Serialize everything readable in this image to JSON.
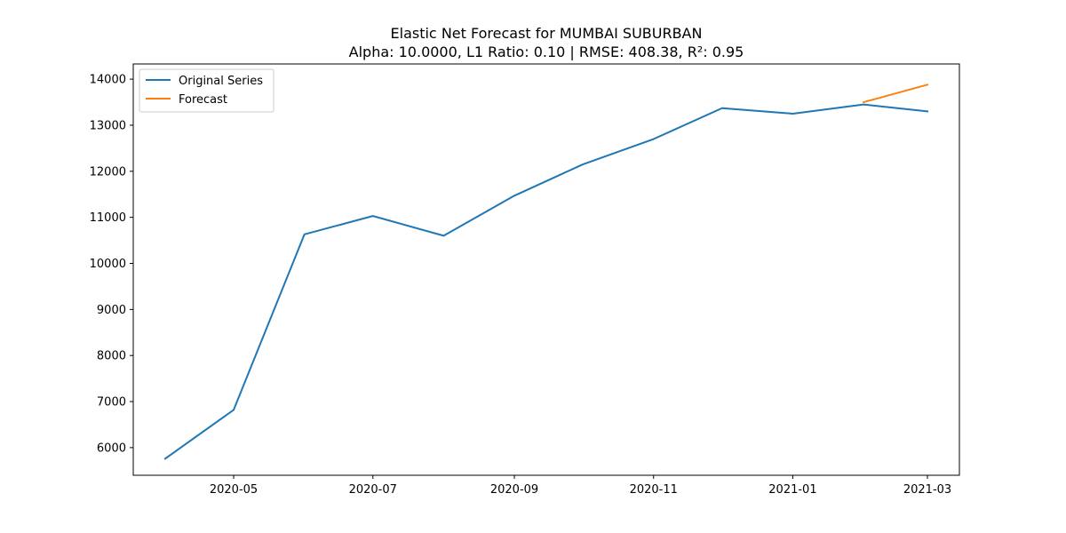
{
  "chart_data": {
    "type": "line",
    "title": "Elastic Net Forecast for MUMBAI SUBURBAN",
    "subtitle": "Alpha: 10.0000, L1 Ratio: 0.10 | RMSE: 408.38, R²: 0.95",
    "xlabel": "",
    "ylabel": "",
    "x_tick_labels": [
      "2020-05",
      "2020-07",
      "2020-09",
      "2020-11",
      "2021-01",
      "2021-03"
    ],
    "y_ticks": [
      6000,
      7000,
      8000,
      9000,
      10000,
      11000,
      12000,
      13000,
      14000
    ],
    "ylim": [
      5400,
      14330
    ],
    "xlim": [
      "2020-03-18",
      "2021-03-15"
    ],
    "grid": false,
    "legend_position": "upper-left",
    "series": [
      {
        "name": "Original Series",
        "color": "#1f77b4",
        "points": [
          {
            "x": "2020-04-01",
            "y": 5760
          },
          {
            "x": "2020-05-01",
            "y": 6820
          },
          {
            "x": "2020-06-01",
            "y": 10630
          },
          {
            "x": "2020-07-01",
            "y": 11030
          },
          {
            "x": "2020-08-01",
            "y": 10600
          },
          {
            "x": "2020-09-01",
            "y": 11470
          },
          {
            "x": "2020-10-01",
            "y": 12150
          },
          {
            "x": "2020-11-01",
            "y": 12700
          },
          {
            "x": "2020-12-01",
            "y": 13370
          },
          {
            "x": "2021-01-01",
            "y": 13250
          },
          {
            "x": "2021-02-01",
            "y": 13450
          },
          {
            "x": "2021-03-01",
            "y": 13300
          }
        ]
      },
      {
        "name": "Forecast",
        "color": "#ff7f0e",
        "points": [
          {
            "x": "2021-02-01",
            "y": 13500
          },
          {
            "x": "2021-03-01",
            "y": 13880
          }
        ]
      }
    ]
  }
}
